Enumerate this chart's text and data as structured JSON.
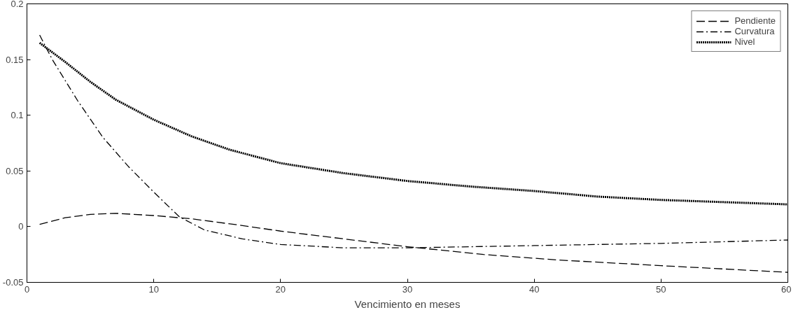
{
  "chart_data": {
    "type": "line",
    "xlabel": "Vencimiento en meses",
    "xlim": [
      0,
      60
    ],
    "xticks": [
      0,
      10,
      20,
      30,
      40,
      50,
      60
    ],
    "ylim": [
      -0.05,
      0.2
    ],
    "yticks": [
      -0.05,
      0,
      0.05,
      0.1,
      0.15,
      0.2
    ],
    "legend": "top right",
    "grid": false,
    "series": [
      {
        "name": "Pendiente",
        "color": "#000000",
        "line_style": "dashed",
        "x": [
          1,
          3,
          5,
          7,
          10,
          13,
          17,
          20,
          25,
          30,
          36,
          42,
          50,
          60
        ],
        "values": [
          0.002,
          0.008,
          0.011,
          0.012,
          0.01,
          0.007,
          0.001,
          -0.004,
          -0.011,
          -0.018,
          -0.025,
          -0.03,
          -0.035,
          -0.041
        ]
      },
      {
        "name": "Curvatura",
        "color": "#000000",
        "line_style": "dashdot",
        "x": [
          1,
          2,
          4,
          6,
          8,
          10,
          12,
          14,
          17,
          20,
          25,
          30,
          35,
          40,
          50,
          60
        ],
        "values": [
          0.172,
          0.15,
          0.113,
          0.08,
          0.054,
          0.031,
          0.009,
          -0.003,
          -0.011,
          -0.016,
          -0.019,
          -0.019,
          -0.018,
          -0.017,
          -0.015,
          -0.012
        ]
      },
      {
        "name": "Nivel",
        "color": "#000000",
        "line_style": "dotted",
        "x": [
          1,
          3,
          5,
          7,
          10,
          13,
          16,
          20,
          25,
          30,
          35,
          40,
          45,
          50,
          55,
          60
        ],
        "values": [
          0.165,
          0.148,
          0.13,
          0.114,
          0.096,
          0.081,
          0.069,
          0.057,
          0.048,
          0.041,
          0.036,
          0.032,
          0.027,
          0.024,
          0.022,
          0.02
        ]
      }
    ]
  }
}
